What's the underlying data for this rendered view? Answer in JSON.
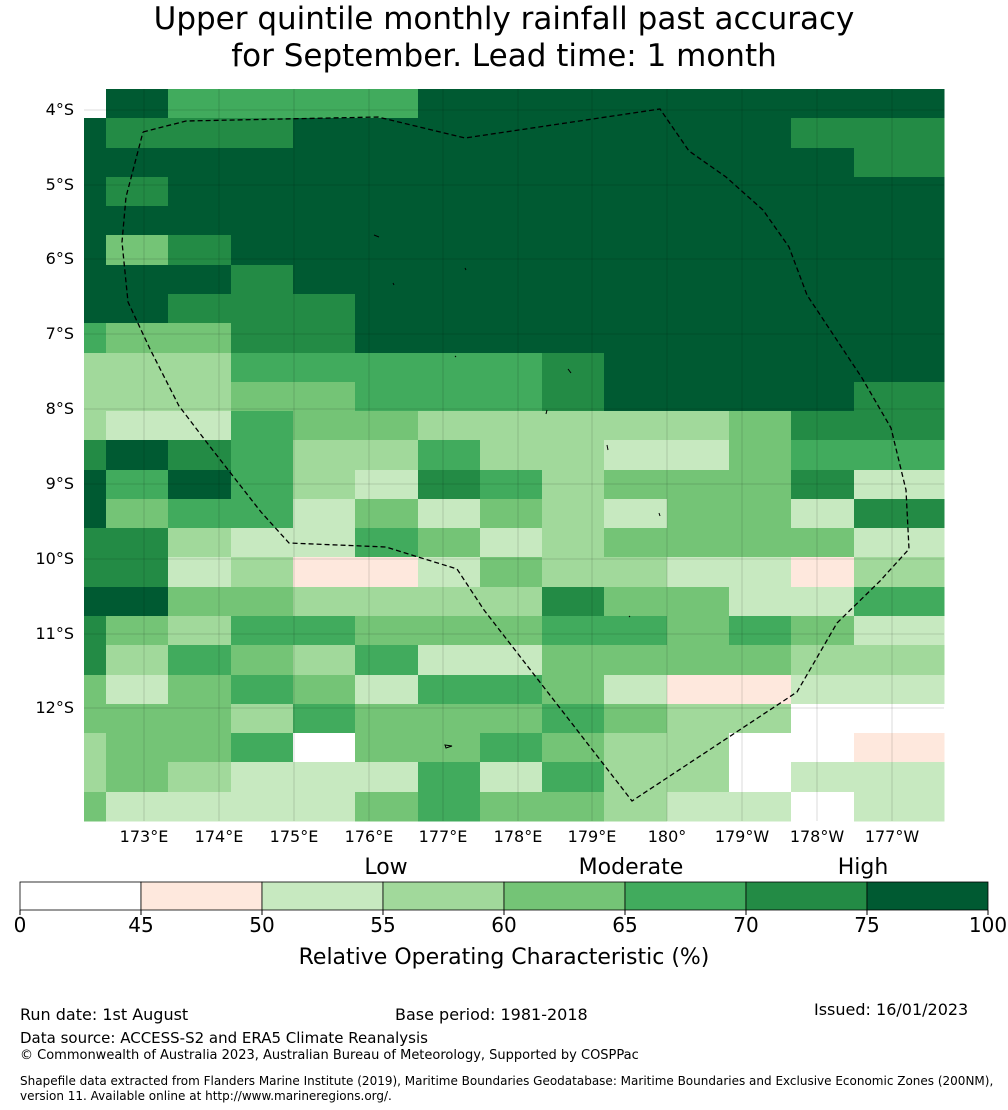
{
  "title_line1": "Upper quintile monthly rainfall past accuracy",
  "title_line2": "for September. Lead time: 1 month",
  "lat_labels": [
    "4°S",
    "5°S",
    "6°S",
    "7°S",
    "8°S",
    "9°S",
    "10°S",
    "11°S",
    "12°S"
  ],
  "lon_labels": [
    "173°E",
    "174°E",
    "175°E",
    "176°E",
    "177°E",
    "178°E",
    "179°E",
    "180°",
    "179°W",
    "178°W",
    "177°W"
  ],
  "colorbar": {
    "categories": [
      "Low",
      "Moderate",
      "High"
    ],
    "ticks": [
      "0",
      "45",
      "50",
      "55",
      "60",
      "65",
      "70",
      "75",
      "100"
    ],
    "title": "Relative Operating Characteristic (%)",
    "colors": [
      "#ffffff",
      "#fee8dd",
      "#c7e9c0",
      "#a1d99b",
      "#74c476",
      "#41ab5d",
      "#238b45",
      "#005a32"
    ]
  },
  "footer": {
    "run_date": "Run date: 1st August",
    "base_period": "Base period: 1981-2018",
    "issued": "Issued: 16/01/2023",
    "data_source": "Data source: ACCESS-S2 and ERA5 Climate Reanalysis",
    "copyright": "© Commonwealth of Australia 2023, Australian Bureau of Meteorology, Supported by COSPPac",
    "shapefile_line1": "Shapefile data extracted from Flanders Marine Institute (2019), Maritime Boundaries Geodatabase: Maritime Boundaries and Exclusive Economic Zones (200NM),",
    "shapefile_line2": "version 11. Available online at http://www.marineregions.org/."
  },
  "map_grid": [
    "07555577777777",
    "76667777777766",
    "77777777777776",
    "76777777777777",
    "77777777777777",
    "74677777777777",
    "77767777777777",
    "77666777777777",
    "54466777777777",
    "33355555677777",
    "33344555677776",
    "32254433333466",
    "67653353322455",
    "75753265344462",
    "74552424324426",
    "66322542344442",
    "66231124332213",
    "77443333644225",
    "64355444554542",
    "63543522444433",
    "42454255421122",
    "44435444543300",
    "34450445433001",
    "34322252533022",
    "42222454432202"
  ]
}
